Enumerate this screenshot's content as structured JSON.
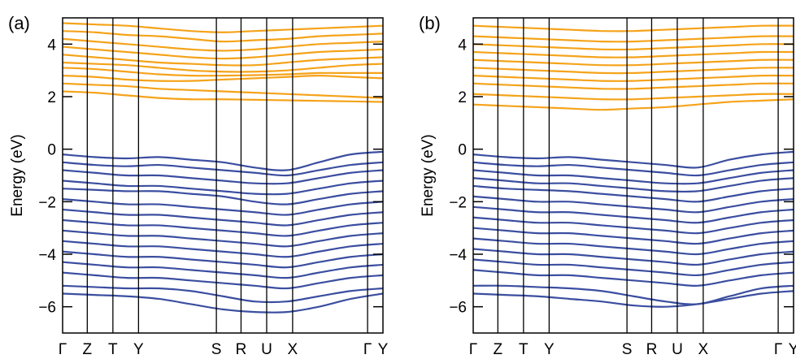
{
  "chart_data": [
    {
      "type": "line",
      "panel_label": "(a)",
      "ylabel": "Energy (eV)",
      "ylim": [
        -7,
        5
      ],
      "yticks": [
        -6,
        -4,
        -2,
        0,
        2,
        4
      ],
      "ytick_labels": [
        "−6",
        "−4",
        "−2",
        "0",
        "2",
        "4"
      ],
      "kpath": [
        {
          "label": "Γ",
          "pos": 0.0
        },
        {
          "label": "Z",
          "pos": 0.077
        },
        {
          "label": "T",
          "pos": 0.157
        },
        {
          "label": "Y",
          "pos": 0.237
        },
        {
          "label": "S",
          "pos": 0.48
        },
        {
          "label": "R",
          "pos": 0.557
        },
        {
          "label": "U",
          "pos": 0.637
        },
        {
          "label": "X",
          "pos": 0.718
        },
        {
          "label": "Γ",
          "pos": 0.952
        },
        {
          "label": "Y",
          "pos": 1.0
        }
      ],
      "conduction_color": "#f5a31a",
      "valence_color": "#3b4ea0",
      "conduction_min": 1.8,
      "valence_max": -0.1,
      "conduction_bands": [
        [
          2.2,
          2.15,
          2.05,
          1.95,
          1.9,
          1.9,
          1.88,
          1.86,
          1.84,
          1.82,
          1.8
        ],
        [
          2.5,
          2.45,
          2.4,
          2.3,
          2.25,
          2.2,
          2.15,
          2.1,
          2.05,
          2.0,
          1.95
        ],
        [
          2.8,
          2.75,
          2.65,
          2.6,
          2.6,
          2.65,
          2.7,
          2.75,
          2.8,
          2.75,
          2.7
        ],
        [
          3.1,
          3.05,
          2.95,
          2.85,
          2.8,
          2.8,
          2.82,
          2.85,
          2.9,
          2.9,
          2.9
        ],
        [
          3.3,
          3.25,
          3.2,
          3.1,
          3.0,
          2.95,
          2.95,
          3.0,
          3.1,
          3.2,
          3.25
        ],
        [
          3.6,
          3.5,
          3.4,
          3.3,
          3.25,
          3.2,
          3.2,
          3.3,
          3.4,
          3.45,
          3.5
        ],
        [
          3.9,
          3.8,
          3.7,
          3.6,
          3.5,
          3.45,
          3.5,
          3.6,
          3.7,
          3.75,
          3.8
        ],
        [
          4.2,
          4.1,
          4.0,
          3.9,
          3.8,
          3.75,
          3.8,
          3.9,
          4.0,
          4.05,
          4.1
        ],
        [
          4.5,
          4.45,
          4.35,
          4.3,
          4.2,
          4.1,
          4.15,
          4.2,
          4.3,
          4.35,
          4.4
        ],
        [
          4.8,
          4.75,
          4.7,
          4.6,
          4.5,
          4.45,
          4.5,
          4.55,
          4.6,
          4.65,
          4.7
        ]
      ],
      "valence_bands": [
        [
          -0.2,
          -0.3,
          -0.35,
          -0.3,
          -0.4,
          -0.5,
          -0.7,
          -0.8,
          -0.5,
          -0.2,
          -0.1
        ],
        [
          -0.5,
          -0.6,
          -0.65,
          -0.6,
          -0.7,
          -0.8,
          -0.9,
          -1.0,
          -0.8,
          -0.6,
          -0.5
        ],
        [
          -0.8,
          -0.9,
          -1.0,
          -1.0,
          -1.1,
          -1.2,
          -1.3,
          -1.3,
          -1.1,
          -0.9,
          -0.8
        ],
        [
          -1.2,
          -1.3,
          -1.4,
          -1.4,
          -1.5,
          -1.6,
          -1.7,
          -1.7,
          -1.5,
          -1.3,
          -1.2
        ],
        [
          -1.5,
          -1.55,
          -1.6,
          -1.6,
          -1.7,
          -1.8,
          -2.0,
          -2.1,
          -1.9,
          -1.7,
          -1.6
        ],
        [
          -1.9,
          -2.0,
          -2.1,
          -2.1,
          -2.2,
          -2.3,
          -2.4,
          -2.5,
          -2.3,
          -2.1,
          -2.0
        ],
        [
          -2.3,
          -2.4,
          -2.5,
          -2.5,
          -2.6,
          -2.7,
          -2.8,
          -2.9,
          -2.7,
          -2.5,
          -2.4
        ],
        [
          -2.7,
          -2.8,
          -2.9,
          -2.9,
          -3.0,
          -3.1,
          -3.2,
          -3.3,
          -3.1,
          -2.9,
          -2.8
        ],
        [
          -3.1,
          -3.2,
          -3.3,
          -3.3,
          -3.4,
          -3.5,
          -3.6,
          -3.7,
          -3.5,
          -3.3,
          -3.2
        ],
        [
          -3.5,
          -3.6,
          -3.7,
          -3.7,
          -3.8,
          -3.9,
          -4.0,
          -4.1,
          -3.9,
          -3.7,
          -3.6
        ],
        [
          -3.9,
          -4.0,
          -4.1,
          -4.1,
          -4.2,
          -4.3,
          -4.4,
          -4.5,
          -4.3,
          -4.1,
          -4.0
        ],
        [
          -4.3,
          -4.4,
          -4.5,
          -4.5,
          -4.6,
          -4.7,
          -4.8,
          -4.9,
          -4.7,
          -4.5,
          -4.4
        ],
        [
          -4.7,
          -4.8,
          -4.9,
          -4.9,
          -5.0,
          -5.1,
          -5.2,
          -5.3,
          -5.1,
          -4.9,
          -4.8
        ],
        [
          -5.2,
          -5.25,
          -5.3,
          -5.3,
          -5.4,
          -5.6,
          -5.8,
          -5.8,
          -5.6,
          -5.4,
          -5.3
        ],
        [
          -5.5,
          -5.55,
          -5.6,
          -5.7,
          -5.9,
          -6.1,
          -6.2,
          -6.2,
          -6.0,
          -5.7,
          -5.5
        ]
      ]
    },
    {
      "type": "line",
      "panel_label": "(b)",
      "ylabel": "Energy (eV)",
      "ylim": [
        -7,
        5
      ],
      "yticks": [
        -6,
        -4,
        -2,
        0,
        2,
        4
      ],
      "ytick_labels": [
        "−6",
        "−4",
        "−2",
        "0",
        "2",
        "4"
      ],
      "kpath": [
        {
          "label": "Γ",
          "pos": 0.0
        },
        {
          "label": "Z",
          "pos": 0.077
        },
        {
          "label": "T",
          "pos": 0.157
        },
        {
          "label": "Y",
          "pos": 0.237
        },
        {
          "label": "S",
          "pos": 0.48
        },
        {
          "label": "R",
          "pos": 0.557
        },
        {
          "label": "U",
          "pos": 0.637
        },
        {
          "label": "X",
          "pos": 0.718
        },
        {
          "label": "Γ",
          "pos": 0.952
        },
        {
          "label": "Y",
          "pos": 1.0
        }
      ],
      "conduction_color": "#f5a31a",
      "valence_color": "#3b4ea0",
      "conduction_min": 1.5,
      "valence_max": -0.1,
      "conduction_bands": [
        [
          1.7,
          1.65,
          1.6,
          1.55,
          1.5,
          1.55,
          1.6,
          1.7,
          1.8,
          1.85,
          1.9
        ],
        [
          2.1,
          2.05,
          2.0,
          1.95,
          1.9,
          1.9,
          1.95,
          2.0,
          2.05,
          2.1,
          2.1
        ],
        [
          2.5,
          2.45,
          2.4,
          2.35,
          2.3,
          2.3,
          2.35,
          2.4,
          2.45,
          2.5,
          2.5
        ],
        [
          2.8,
          2.75,
          2.7,
          2.65,
          2.6,
          2.6,
          2.65,
          2.7,
          2.75,
          2.8,
          2.8
        ],
        [
          3.1,
          3.05,
          3.0,
          2.95,
          2.9,
          2.9,
          2.95,
          3.0,
          3.05,
          3.1,
          3.1
        ],
        [
          3.4,
          3.35,
          3.3,
          3.25,
          3.2,
          3.2,
          3.25,
          3.3,
          3.35,
          3.4,
          3.4
        ],
        [
          3.7,
          3.65,
          3.6,
          3.55,
          3.5,
          3.5,
          3.55,
          3.6,
          3.65,
          3.7,
          3.7
        ],
        [
          4.0,
          3.95,
          3.9,
          3.85,
          3.8,
          3.8,
          3.85,
          3.9,
          3.95,
          4.0,
          4.0
        ],
        [
          4.3,
          4.25,
          4.2,
          4.15,
          4.1,
          4.1,
          4.15,
          4.2,
          4.25,
          4.3,
          4.3
        ],
        [
          4.7,
          4.65,
          4.6,
          4.55,
          4.5,
          4.5,
          4.55,
          4.6,
          4.65,
          4.7,
          4.7
        ]
      ],
      "valence_bands": [
        [
          -0.2,
          -0.3,
          -0.35,
          -0.3,
          -0.4,
          -0.5,
          -0.6,
          -0.7,
          -0.4,
          -0.2,
          -0.1
        ],
        [
          -0.5,
          -0.6,
          -0.65,
          -0.6,
          -0.7,
          -0.8,
          -0.9,
          -1.0,
          -0.8,
          -0.6,
          -0.5
        ],
        [
          -0.8,
          -0.9,
          -1.0,
          -1.0,
          -1.1,
          -1.2,
          -1.3,
          -1.3,
          -1.1,
          -0.9,
          -0.8
        ],
        [
          -1.1,
          -1.2,
          -1.3,
          -1.3,
          -1.4,
          -1.5,
          -1.6,
          -1.6,
          -1.4,
          -1.2,
          -1.1
        ],
        [
          -1.4,
          -1.5,
          -1.55,
          -1.6,
          -1.7,
          -1.8,
          -1.9,
          -2.0,
          -1.8,
          -1.6,
          -1.5
        ],
        [
          -1.8,
          -1.9,
          -2.0,
          -2.0,
          -2.1,
          -2.2,
          -2.3,
          -2.4,
          -2.2,
          -2.0,
          -1.9
        ],
        [
          -2.2,
          -2.3,
          -2.4,
          -2.4,
          -2.5,
          -2.6,
          -2.7,
          -2.8,
          -2.6,
          -2.4,
          -2.3
        ],
        [
          -2.6,
          -2.7,
          -2.8,
          -2.8,
          -2.9,
          -3.0,
          -3.1,
          -3.2,
          -3.0,
          -2.8,
          -2.7
        ],
        [
          -3.0,
          -3.1,
          -3.2,
          -3.2,
          -3.3,
          -3.4,
          -3.5,
          -3.6,
          -3.4,
          -3.2,
          -3.1
        ],
        [
          -3.4,
          -3.5,
          -3.6,
          -3.6,
          -3.7,
          -3.8,
          -3.9,
          -4.0,
          -3.8,
          -3.6,
          -3.5
        ],
        [
          -3.8,
          -3.9,
          -4.0,
          -4.0,
          -4.1,
          -4.2,
          -4.3,
          -4.4,
          -4.2,
          -4.0,
          -3.9
        ],
        [
          -4.2,
          -4.3,
          -4.4,
          -4.4,
          -4.5,
          -4.6,
          -4.7,
          -4.8,
          -4.6,
          -4.4,
          -4.3
        ],
        [
          -4.6,
          -4.7,
          -4.8,
          -4.8,
          -4.9,
          -5.0,
          -5.1,
          -5.2,
          -5.0,
          -4.8,
          -4.7
        ],
        [
          -5.2,
          -5.2,
          -5.25,
          -5.3,
          -5.4,
          -5.6,
          -5.8,
          -5.9,
          -5.6,
          -5.3,
          -5.2
        ],
        [
          -5.5,
          -5.55,
          -5.6,
          -5.7,
          -5.8,
          -5.95,
          -6.0,
          -5.9,
          -5.7,
          -5.5,
          -5.4
        ]
      ]
    }
  ]
}
